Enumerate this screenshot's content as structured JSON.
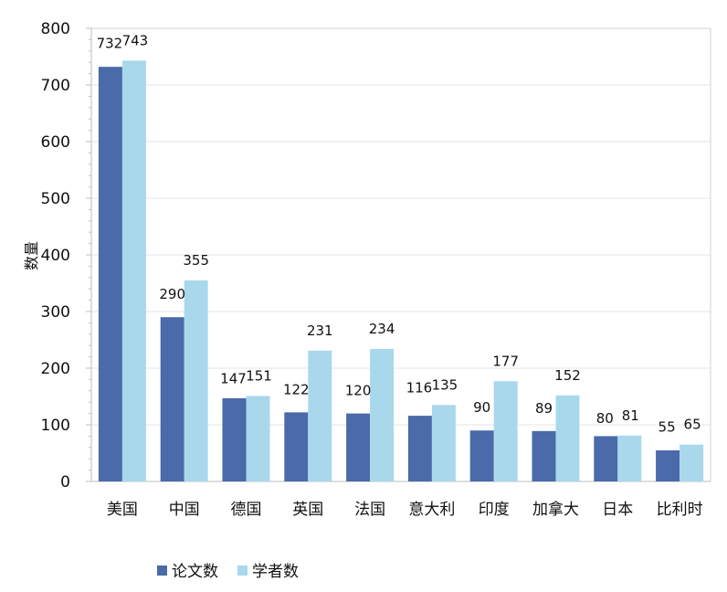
{
  "chart_data": {
    "type": "bar",
    "title": "",
    "xlabel": "",
    "ylabel": "数量",
    "ylim": [
      0,
      800
    ],
    "yticks": [
      0,
      100,
      200,
      300,
      400,
      500,
      600,
      700,
      800
    ],
    "grid": true,
    "legend_position": "bottom-center",
    "categories": [
      "美国",
      "中国",
      "德国",
      "英国",
      "法国",
      "意大利",
      "印度",
      "加拿大",
      "日本",
      "比利时"
    ],
    "series": [
      {
        "name": "论文数",
        "color": "#4a6aa9",
        "values": [
          732,
          290,
          147,
          122,
          120,
          116,
          90,
          89,
          80,
          55
        ]
      },
      {
        "name": "学者数",
        "color": "#a9d8ec",
        "values": [
          743,
          355,
          151,
          231,
          234,
          135,
          177,
          152,
          81,
          65
        ]
      }
    ]
  }
}
